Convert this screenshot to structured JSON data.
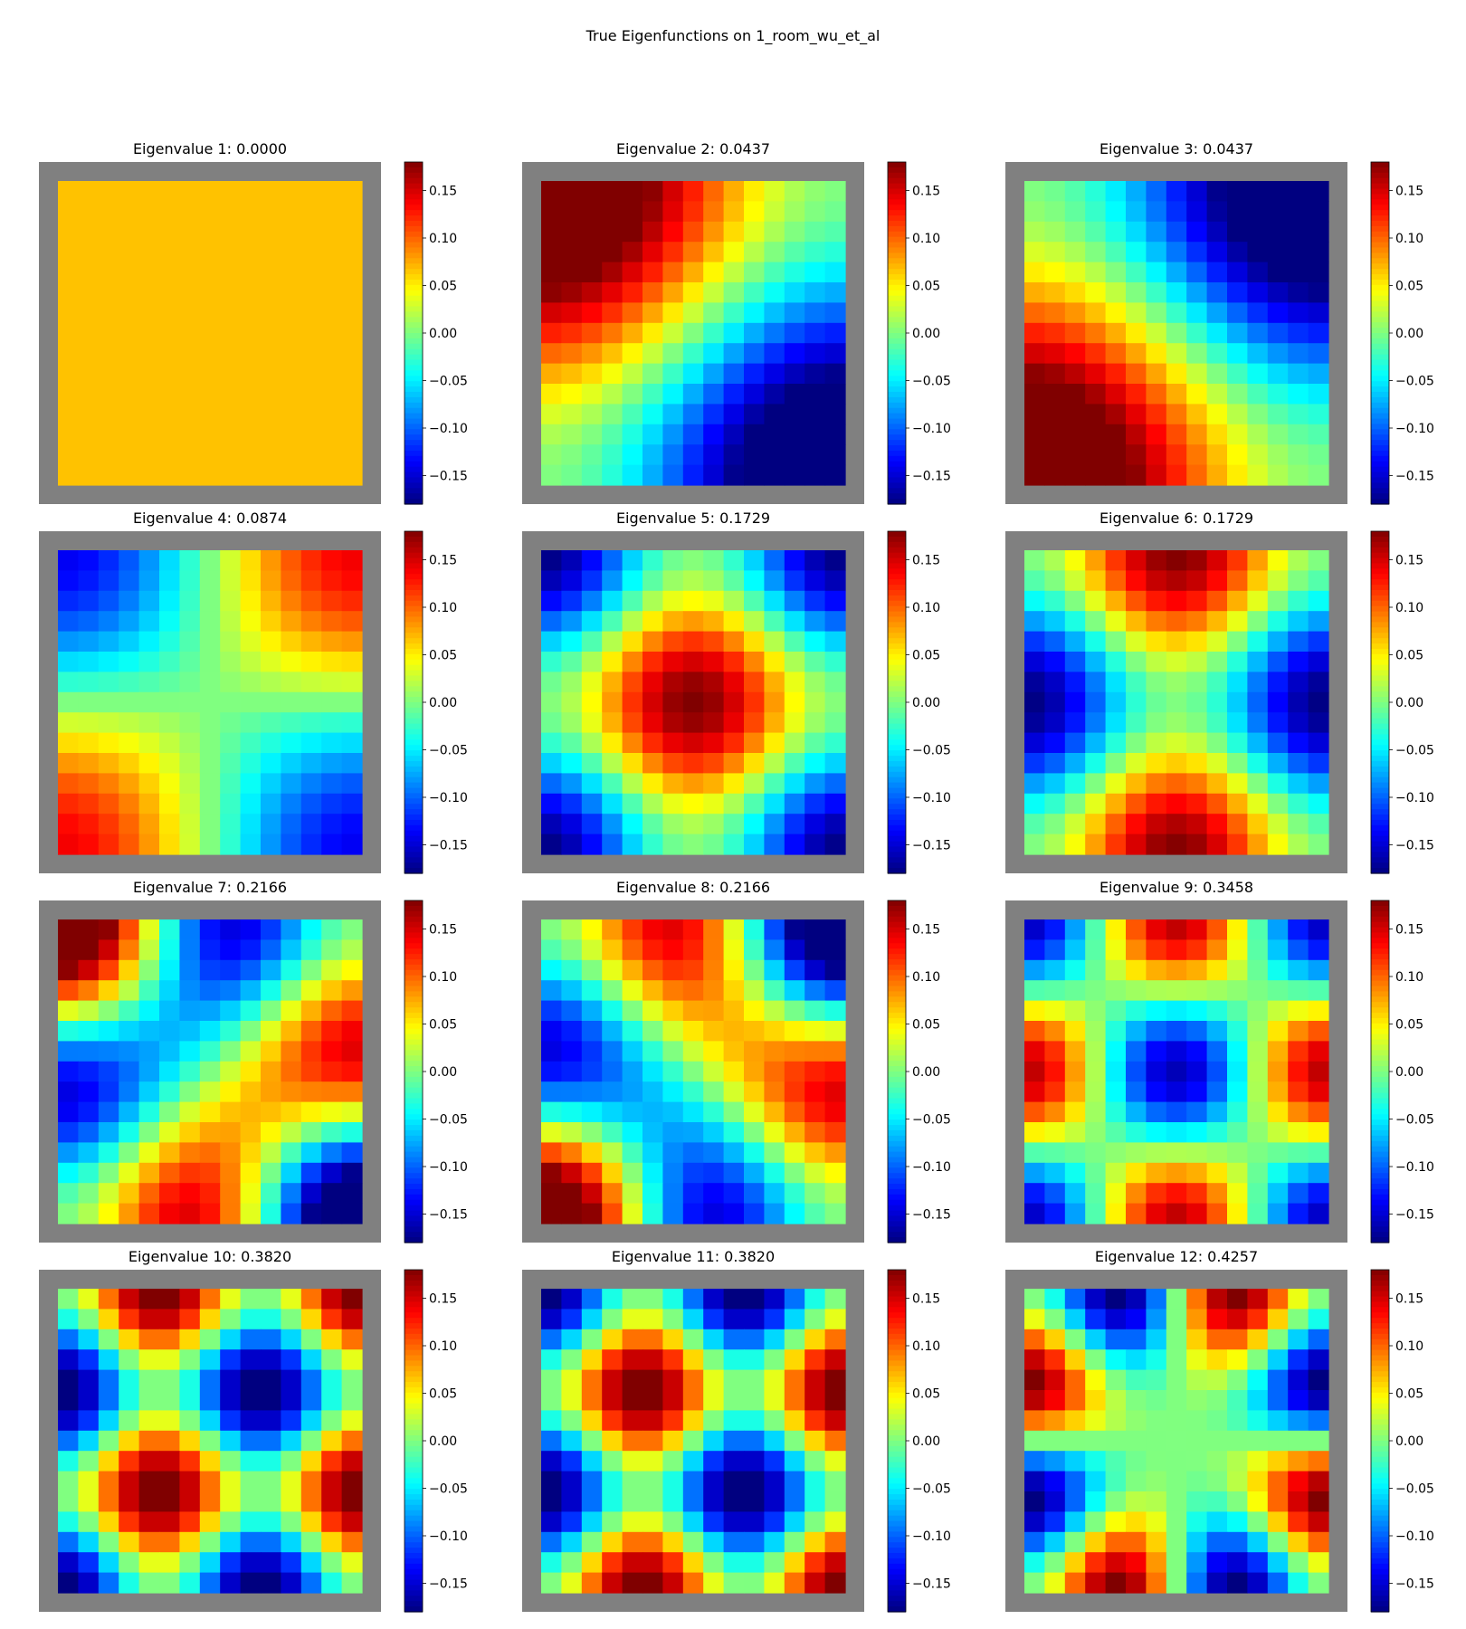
{
  "figure": {
    "title": "True Eigenfunctions on 1_room_wu_et_al"
  },
  "chart_data": {
    "type": "heatmap",
    "title": "True Eigenfunctions on 1_room_wu_et_al",
    "grid_size": 15,
    "wall_color": "#808080",
    "colormap": "jet",
    "color_range": [
      -0.18,
      0.18
    ],
    "colorbar_ticks": [
      "0.15",
      "0.10",
      "0.05",
      "0.00",
      "−0.05",
      "−0.10",
      "−0.15"
    ],
    "colorbar_tick_values": [
      0.15,
      0.1,
      0.05,
      0.0,
      -0.05,
      -0.1,
      -0.15
    ],
    "panels": [
      {
        "label": "Eigenvalue 1: 0.0000",
        "eigenvalue": 0.0,
        "mode": [
          0,
          0
        ],
        "amp": 0.0667,
        "combo": "const"
      },
      {
        "label": "Eigenvalue 2: 0.0437",
        "eigenvalue": 0.0437,
        "mode": [
          0,
          1
        ],
        "amp": 0.125,
        "combo": "plus"
      },
      {
        "label": "Eigenvalue 3: 0.0437",
        "eigenvalue": 0.0437,
        "mode": [
          0,
          1
        ],
        "amp": 0.125,
        "combo": "minus"
      },
      {
        "label": "Eigenvalue 4: 0.0874",
        "eigenvalue": 0.0874,
        "mode": [
          1,
          1
        ],
        "amp": -0.14,
        "combo": "single"
      },
      {
        "label": "Eigenvalue 5: 0.1729",
        "eigenvalue": 0.1729,
        "mode": [
          0,
          2
        ],
        "amp": -0.09,
        "combo": "plus"
      },
      {
        "label": "Eigenvalue 6: 0.1729",
        "eigenvalue": 0.1729,
        "mode": [
          0,
          2
        ],
        "amp": -0.09,
        "combo": "minus"
      },
      {
        "label": "Eigenvalue 7: 0.2166",
        "eigenvalue": 0.2166,
        "mode": [
          1,
          2
        ],
        "amp": 0.13,
        "combo": "plus"
      },
      {
        "label": "Eigenvalue 8: 0.2166",
        "eigenvalue": 0.2166,
        "mode": [
          1,
          2
        ],
        "amp": -0.13,
        "combo": "minus"
      },
      {
        "label": "Eigenvalue 9: 0.3458",
        "eigenvalue": 0.3458,
        "mode": [
          2,
          2
        ],
        "amp": -0.16,
        "combo": "single"
      },
      {
        "label": "Eigenvalue 10: 0.3820",
        "eigenvalue": 0.382,
        "mode": [
          0,
          3
        ],
        "amp": -0.1,
        "combo": "minus"
      },
      {
        "label": "Eigenvalue 11: 0.3820",
        "eigenvalue": 0.382,
        "mode": [
          0,
          3
        ],
        "amp": -0.1,
        "combo": "plus"
      },
      {
        "label": "Eigenvalue 12: 0.4257",
        "eigenvalue": 0.4257,
        "mode": [
          1,
          3
        ],
        "amp": 0.12,
        "combo": "minus"
      }
    ]
  }
}
